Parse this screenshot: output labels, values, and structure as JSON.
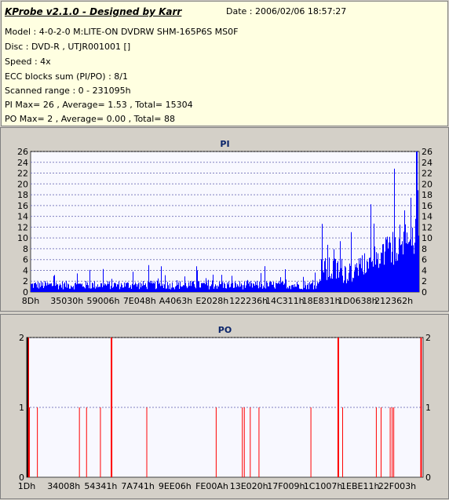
{
  "header": {
    "title": "KProbe v2.1.0 - Designed by Karr",
    "date": "Date : 2006/02/06 18:57:27",
    "lines": [
      "Model : 4-0-2-0 M:LITE-ON DVDRW SHM-165P6S MS0F",
      "Disc : DVD-R , UTJR001001 []",
      "Speed : 4x",
      "ECC blocks sum (PI/PO) : 8/1",
      "Scanned range : 0 - 231095h",
      "PI Max= 26 , Average= 1.53 , Total= 15304",
      "PO Max= 2 , Average= 0.00 , Total= 88"
    ]
  },
  "colors": {
    "pi_fill": "#0000ff",
    "po_line": "#ff0000",
    "plot_bg": "#f8f8ff",
    "grid": "#8080c0"
  },
  "chart_data": [
    {
      "type": "area",
      "title": "PI",
      "ylim": [
        0,
        26
      ],
      "yticks": [
        "0",
        "2",
        "4",
        "6",
        "8",
        "10",
        "12",
        "14",
        "16",
        "18",
        "20",
        "22",
        "24",
        "26"
      ],
      "xticks": [
        "8Dh",
        "35030h",
        "59006h",
        "7E048h",
        "A4063h",
        "E2028h",
        "122236h",
        "14C311h",
        "18E831h",
        "1D0638h",
        "212362h"
      ],
      "grid": true,
      "x_range_label": "0 - 231095h",
      "baseline_segments": [
        {
          "from": 0.0,
          "to": 0.74,
          "level": 1.6,
          "spikes": [
            5.0,
            4.0,
            3.0,
            5.0,
            3.0
          ]
        },
        {
          "from": 0.74,
          "to": 0.83,
          "level": 5.0,
          "spikes": [
            13.0,
            10.0,
            9.0
          ]
        },
        {
          "from": 0.83,
          "to": 1.0,
          "level": 8.0,
          "spikes": [
            26.0,
            22.0,
            20.0,
            18.0,
            16.0,
            15.0
          ]
        }
      ]
    },
    {
      "type": "bar",
      "title": "PO",
      "ylim": [
        0,
        2
      ],
      "yticks": [
        "0",
        "1",
        "2"
      ],
      "xticks": [
        "1Dh",
        "34008h",
        "54341h",
        "7A741h",
        "9EE06h",
        "FE00Ah",
        "13E020h",
        "17F009h",
        "1C1007h",
        "1EBE11h",
        "22F003h"
      ],
      "grid": true,
      "values": [
        {
          "x": 0.004,
          "y": 2
        },
        {
          "x": 0.007,
          "y": 1
        },
        {
          "x": 0.027,
          "y": 1
        },
        {
          "x": 0.133,
          "y": 1
        },
        {
          "x": 0.151,
          "y": 1
        },
        {
          "x": 0.186,
          "y": 1
        },
        {
          "x": 0.214,
          "y": 2
        },
        {
          "x": 0.303,
          "y": 1
        },
        {
          "x": 0.478,
          "y": 1
        },
        {
          "x": 0.544,
          "y": 1
        },
        {
          "x": 0.549,
          "y": 1
        },
        {
          "x": 0.564,
          "y": 1
        },
        {
          "x": 0.586,
          "y": 1
        },
        {
          "x": 0.717,
          "y": 1
        },
        {
          "x": 0.786,
          "y": 2
        },
        {
          "x": 0.797,
          "y": 1
        },
        {
          "x": 0.882,
          "y": 1
        },
        {
          "x": 0.894,
          "y": 1
        },
        {
          "x": 0.917,
          "y": 1
        },
        {
          "x": 0.922,
          "y": 1
        },
        {
          "x": 0.926,
          "y": 1
        },
        {
          "x": 0.995,
          "y": 2
        }
      ]
    }
  ]
}
